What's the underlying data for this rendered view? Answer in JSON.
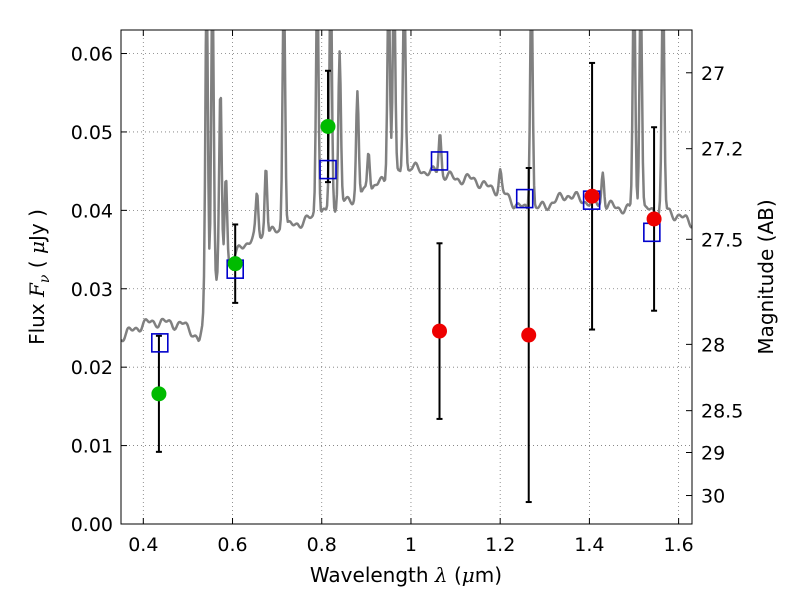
{
  "chart_data": {
    "type": "scatter",
    "xlabel": {
      "pre": "Wavelength  ",
      "sym": "λ",
      "post": " (",
      "mu": "μ",
      "unit": "m)"
    },
    "ylabel": {
      "pre": "Flux  ",
      "sym": "F",
      "sub": "ν",
      "post": "  ( ",
      "mu": "μ",
      "unit": "Jy )"
    },
    "y2label": "Magnitude (AB)",
    "xlim": [
      0.35,
      1.63
    ],
    "ylim": [
      0.0,
      0.063
    ],
    "xticks": [
      0.4,
      0.6,
      0.8,
      1.0,
      1.2,
      1.4,
      1.6
    ],
    "xtick_labels": [
      "0.4",
      "0.6",
      "0.8",
      "1",
      "1.2",
      "1.4",
      "1.6"
    ],
    "yticks": [
      0.0,
      0.01,
      0.02,
      0.03,
      0.04,
      0.05,
      0.06
    ],
    "ytick_labels": [
      "0.00",
      "0.01",
      "0.02",
      "0.03",
      "0.04",
      "0.05",
      "0.06"
    ],
    "y2ticks": [
      {
        "label": "27",
        "mag": 27.0
      },
      {
        "label": "27.2",
        "mag": 27.2
      },
      {
        "label": "27.5",
        "mag": 27.5
      },
      {
        "label": "28",
        "mag": 28.0
      },
      {
        "label": "28.5",
        "mag": 28.5
      },
      {
        "label": "29",
        "mag": 29.0
      },
      {
        "label": "30",
        "mag": 30.0
      }
    ],
    "grid": true,
    "colors": {
      "spectrum": "#808080",
      "green": "#00bb00",
      "red": "#ee0000",
      "model_box": "#0000cc",
      "errorbar": "#000000",
      "grid": "#777777"
    },
    "spectrum_continuum": [
      [
        0.35,
        0.0238
      ],
      [
        0.37,
        0.0245
      ],
      [
        0.4,
        0.0255
      ],
      [
        0.43,
        0.0258
      ],
      [
        0.46,
        0.0256
      ],
      [
        0.49,
        0.0254
      ],
      [
        0.51,
        0.0246
      ],
      [
        0.525,
        0.0232
      ],
      [
        0.533,
        0.025
      ],
      [
        0.54,
        0.0296
      ],
      [
        0.56,
        0.0305
      ],
      [
        0.58,
        0.0322
      ],
      [
        0.6,
        0.0335
      ],
      [
        0.62,
        0.0355
      ],
      [
        0.65,
        0.0365
      ],
      [
        0.68,
        0.037
      ],
      [
        0.72,
        0.0378
      ],
      [
        0.76,
        0.0386
      ],
      [
        0.8,
        0.0396
      ],
      [
        0.84,
        0.0408
      ],
      [
        0.88,
        0.0418
      ],
      [
        0.92,
        0.0432
      ],
      [
        0.95,
        0.044
      ],
      [
        0.98,
        0.0445
      ],
      [
        1.0,
        0.0455
      ],
      [
        1.03,
        0.045
      ],
      [
        1.06,
        0.0448
      ],
      [
        1.1,
        0.044
      ],
      [
        1.14,
        0.044
      ],
      [
        1.17,
        0.043
      ],
      [
        1.2,
        0.0425
      ],
      [
        1.23,
        0.041
      ],
      [
        1.26,
        0.04
      ],
      [
        1.3,
        0.0405
      ],
      [
        1.35,
        0.042
      ],
      [
        1.4,
        0.041
      ],
      [
        1.45,
        0.0405
      ],
      [
        1.5,
        0.04
      ],
      [
        1.55,
        0.04
      ],
      [
        1.58,
        0.0398
      ],
      [
        1.6,
        0.0392
      ],
      [
        1.63,
        0.0385
      ]
    ],
    "spectrum_lines": [
      {
        "x": 0.542,
        "peak": 0.07
      },
      {
        "x": 0.555,
        "peak": 0.07
      },
      {
        "x": 0.573,
        "peak": 0.055
      },
      {
        "x": 0.585,
        "peak": 0.045
      },
      {
        "x": 0.655,
        "peak": 0.042
      },
      {
        "x": 0.675,
        "peak": 0.046
      },
      {
        "x": 0.715,
        "peak": 0.07
      },
      {
        "x": 0.79,
        "peak": 0.07
      },
      {
        "x": 0.82,
        "peak": 0.07
      },
      {
        "x": 0.84,
        "peak": 0.06
      },
      {
        "x": 0.88,
        "peak": 0.055
      },
      {
        "x": 0.905,
        "peak": 0.048
      },
      {
        "x": 0.95,
        "peak": 0.07
      },
      {
        "x": 0.962,
        "peak": 0.07
      },
      {
        "x": 0.985,
        "peak": 0.07
      },
      {
        "x": 1.065,
        "peak": 0.05
      },
      {
        "x": 1.2,
        "peak": 0.045
      },
      {
        "x": 1.27,
        "peak": 0.07
      },
      {
        "x": 1.43,
        "peak": 0.045
      },
      {
        "x": 1.5,
        "peak": 0.07
      },
      {
        "x": 1.515,
        "peak": 0.07
      },
      {
        "x": 1.565,
        "peak": 0.07
      }
    ],
    "model_points": [
      {
        "x": 0.437,
        "y": 0.0231
      },
      {
        "x": 0.606,
        "y": 0.0325
      },
      {
        "x": 0.814,
        "y": 0.0452
      },
      {
        "x": 1.064,
        "y": 0.0463
      },
      {
        "x": 1.255,
        "y": 0.0415
      },
      {
        "x": 1.405,
        "y": 0.0413
      },
      {
        "x": 1.54,
        "y": 0.0372
      }
    ],
    "observed_points": [
      {
        "x": 0.435,
        "y": 0.0166,
        "err": 0.0074,
        "color": "green"
      },
      {
        "x": 0.606,
        "y": 0.0332,
        "err": 0.005,
        "color": "green"
      },
      {
        "x": 0.814,
        "y": 0.0507,
        "err": 0.0071,
        "color": "green"
      },
      {
        "x": 1.064,
        "y": 0.0246,
        "err": 0.0112,
        "color": "red"
      },
      {
        "x": 1.264,
        "y": 0.0241,
        "err": 0.0213,
        "color": "red"
      },
      {
        "x": 1.406,
        "y": 0.0418,
        "err": 0.017,
        "color": "red"
      },
      {
        "x": 1.545,
        "y": 0.0389,
        "err": 0.0117,
        "color": "red"
      }
    ]
  }
}
